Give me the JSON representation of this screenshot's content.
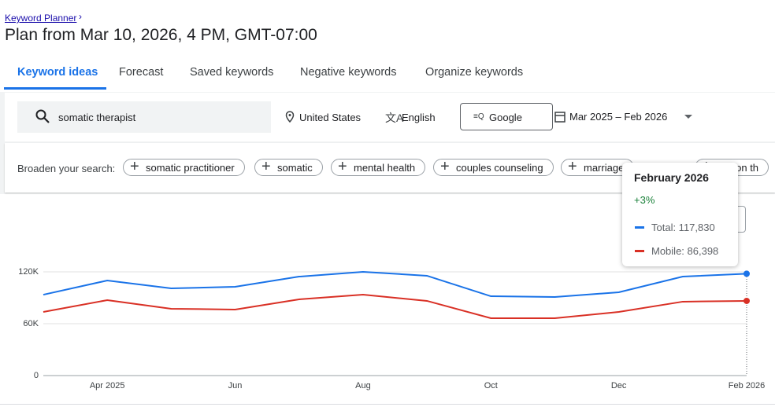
{
  "header": {
    "breadcrumb": "Keyword Planner",
    "title": "Plan from Mar 10, 2026, 4 PM, GMT-07:00"
  },
  "tabs": [
    "Keyword ideas",
    "Forecast",
    "Saved keywords",
    "Negative keywords",
    "Organize keywords"
  ],
  "filters": {
    "query": "somatic therapist",
    "location": "United States",
    "language": "English",
    "network": "Google",
    "date_range": "Mar 2025 – Feb 2026"
  },
  "broaden": {
    "label": "Broaden your search:",
    "chips": [
      "somatic practitioner",
      "somatic",
      "mental health",
      "couples counseling",
      "marriage",
      "ession th"
    ]
  },
  "chart_data": {
    "type": "line",
    "categories": [
      null,
      "Apr 2025",
      null,
      "Jun",
      null,
      "Aug",
      null,
      "Oct",
      null,
      "Dec",
      null,
      "Feb 2026"
    ],
    "series": [
      {
        "name": "Total",
        "color": "#1a73e8",
        "values": [
          93600,
          110000,
          100900,
          102700,
          114500,
          120000,
          115500,
          91800,
          90900,
          96400,
          114500,
          117830
        ]
      },
      {
        "name": "Mobile",
        "color": "#d93025",
        "values": [
          73600,
          87300,
          77300,
          76400,
          88200,
          93600,
          86400,
          66400,
          66400,
          73600,
          85500,
          86398
        ]
      }
    ],
    "ylim": [
      0,
      120000
    ],
    "yticks": [
      0,
      {
        "value": 60000,
        "label": "60K"
      },
      {
        "value": 120000,
        "label": "120K"
      }
    ],
    "grid": true
  },
  "tooltip": {
    "title": "February 2026",
    "change": "+3%",
    "items": [
      "Total: 117,830",
      "Mobile: 86,398"
    ]
  }
}
